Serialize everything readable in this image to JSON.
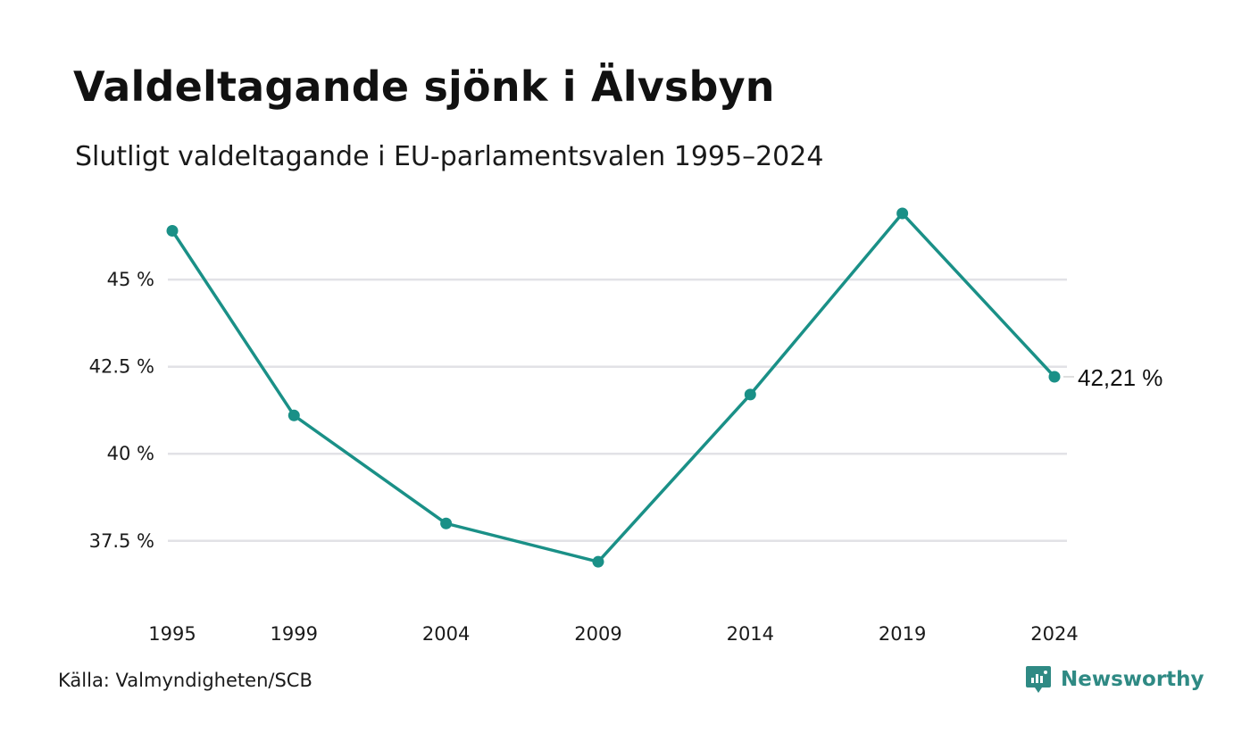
{
  "title": "Valdeltagande sjönk i Älvsbyn",
  "subtitle": "Slutligt valdeltagande i EU-parlamentsvalen 1995–2024",
  "source": "Källa: Valmyndigheten/SCB",
  "brand": {
    "name": "Newsworthy",
    "icon": "newsworthy-logo-icon",
    "color": "#2f8a84"
  },
  "colors": {
    "line": "#1a9087",
    "grid": "#e2e2e6"
  },
  "chart_data": {
    "type": "line",
    "title": "Valdeltagande sjönk i Älvsbyn",
    "subtitle": "Slutligt valdeltagande i EU-parlamentsvalen 1995–2024",
    "xlabel": "",
    "ylabel": "",
    "x": [
      1995,
      1999,
      2004,
      2009,
      2014,
      2019,
      2024
    ],
    "x_tick_labels": [
      "1995",
      "1999",
      "2004",
      "2009",
      "2014",
      "2019",
      "2024"
    ],
    "series": [
      {
        "values": [
          46.4,
          41.1,
          38.0,
          36.9,
          41.7,
          46.9,
          42.21
        ]
      }
    ],
    "y_ticks": [
      37.5,
      40,
      42.5,
      45
    ],
    "y_tick_labels": [
      "37.5 %",
      "40 %",
      "42.5 %",
      "45 %"
    ],
    "ylim": [
      35.7,
      47.9
    ],
    "grid": true,
    "legend": "none",
    "annotation": {
      "index": 6,
      "text": "42,21 %"
    }
  }
}
